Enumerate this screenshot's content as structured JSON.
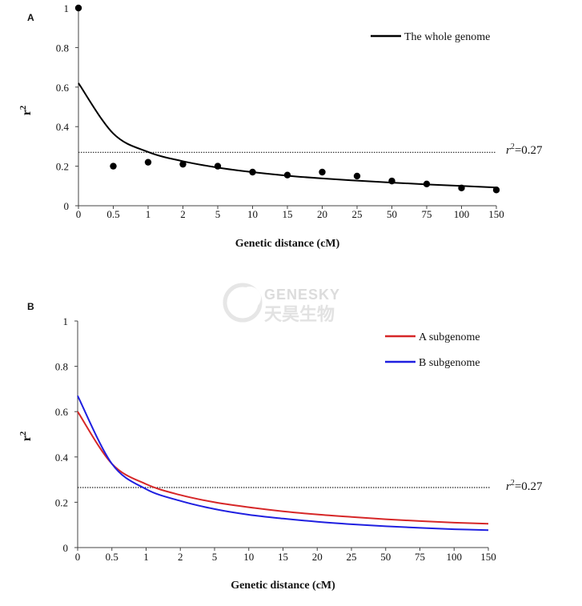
{
  "watermark": {
    "brand": "GENESKY",
    "brand_cn": "天昊生物"
  },
  "chart_data": [
    {
      "type": "scatter",
      "panel_label": "A",
      "xlabel": "Genetic distance (cM)",
      "ylabel": "r",
      "ylabel_sup": "2",
      "ylim": [
        0,
        1
      ],
      "yticks": [
        "0",
        "0.2",
        "0.4",
        "0.6",
        "0.8",
        "1"
      ],
      "categories": [
        "0",
        "0.5",
        "1",
        "2",
        "5",
        "10",
        "15",
        "20",
        "25",
        "50",
        "75",
        "100",
        "150"
      ],
      "series": [
        {
          "name": "The whole genome",
          "kind": "fitted-curve",
          "color": "#000000",
          "values": [
            0.62,
            0.365,
            0.272,
            0.225,
            0.193,
            0.17,
            0.152,
            0.138,
            0.127,
            0.117,
            0.108,
            0.1,
            0.092
          ]
        },
        {
          "kind": "points",
          "color": "#000000",
          "values": [
            1.0,
            0.2,
            0.22,
            0.21,
            0.2,
            0.17,
            0.155,
            0.17,
            0.15,
            0.125,
            0.11,
            0.09,
            0.08
          ]
        }
      ],
      "threshold": {
        "value": 0.27,
        "label_var": "r",
        "label_sup": "2",
        "label_rest": "=0.27"
      },
      "legend_position": "top-right"
    },
    {
      "type": "line",
      "panel_label": "B",
      "xlabel": "Genetic distance (cM)",
      "ylabel": "r",
      "ylabel_sup": "2",
      "ylim": [
        0,
        1
      ],
      "yticks": [
        "0",
        "0.2",
        "0.4",
        "0.6",
        "0.8",
        "1"
      ],
      "categories": [
        "0",
        "0.5",
        "1",
        "2",
        "5",
        "10",
        "15",
        "20",
        "25",
        "50",
        "75",
        "100",
        "150"
      ],
      "series": [
        {
          "name": "A subgenome",
          "color": "#d62728",
          "values": [
            0.6,
            0.37,
            0.28,
            0.232,
            0.2,
            0.178,
            0.16,
            0.146,
            0.135,
            0.125,
            0.117,
            0.11,
            0.105
          ]
        },
        {
          "name": "B subgenome",
          "color": "#1f1fe0",
          "values": [
            0.67,
            0.37,
            0.258,
            0.206,
            0.17,
            0.145,
            0.128,
            0.114,
            0.103,
            0.094,
            0.087,
            0.081,
            0.077
          ]
        }
      ],
      "threshold": {
        "value": 0.265,
        "label_var": "r",
        "label_sup": "2",
        "label_rest": "=0.27"
      },
      "legend_position": "top-right"
    }
  ]
}
